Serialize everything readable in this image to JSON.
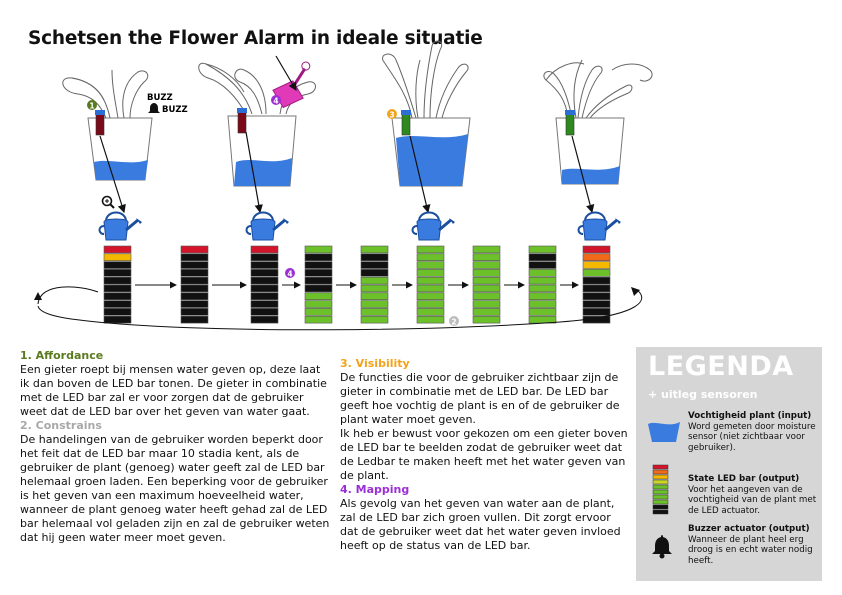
{
  "title": "Schetsen the Flower Alarm in ideale situatie",
  "scene": {
    "buzz_labels": [
      "BUZZ",
      "BUZZ"
    ],
    "step_markers": [
      "1",
      "4",
      "3",
      "4",
      "2"
    ],
    "led_levels": [
      2,
      1,
      1,
      4,
      6,
      9,
      10,
      9,
      7,
      4
    ],
    "water_levels": [
      0.35,
      0.55,
      0.65,
      0.2
    ]
  },
  "colors": {
    "water": "#3a7be0",
    "led_green": "#6cc02a",
    "led_yellow": "#f5b800",
    "led_red": "#d4142b",
    "led_off": "#111111",
    "affordance": "#5a7a1e",
    "constrains": "#a8a8a8",
    "visibility": "#f2a31b",
    "mapping": "#9b2fd4",
    "legend_bg": "#d6d6d6"
  },
  "sections": {
    "affordance": {
      "heading": "1. Affordance",
      "body": "Een gieter roept bij mensen water geven op, deze laat ik dan boven de LED bar tonen. De gieter in combinatie met de LED bar zal er voor zorgen dat de gebruiker weet dat de LED bar over het geven van water gaat."
    },
    "constrains": {
      "heading": "2. Constrains",
      "body": "De handelingen van de gebruiker worden beperkt door het feit dat de LED bar maar 10 stadia kent, als de gebruiker de plant (genoeg) water geeft zal de LED bar helemaal groen laden. Een beperking voor de gebruiker is het geven van een maximum hoeveelheid water, wanneer de plant genoeg water heeft gehad zal de LED bar helemaal vol geladen zijn en zal de gebruiker weten dat hij geen water meer moet geven."
    },
    "visibility": {
      "heading": "3. Visibility",
      "body": "De functies die voor de gebruiker zichtbaar zijn de gieter in combinatie met de LED bar. De LED bar geeft hoe vochtig de plant is en of de gebruiker de plant water moet geven.",
      "body2": "Ik heb er bewust voor gekozen om een gieter boven de LED bar te beelden zodat de gebruiker weet dat de Ledbar te maken heeft met het water geven van de plant."
    },
    "mapping": {
      "heading": "4. Mapping",
      "body": "Als gevolg van het geven van water aan de plant, zal de LED bar zich groen vullen. Dit zorgt ervoor dat de gebruiker weet dat het water geven invloed heeft op de status van de LED bar."
    }
  },
  "legend": {
    "title": "LEGENDA",
    "subtitle": "+ uitleg sensoren",
    "items": [
      {
        "title": "Vochtigheid plant (input)",
        "desc": "Word gemeten door moisture sensor (niet zichtbaar voor gebruiker).",
        "icon": "water-icon"
      },
      {
        "title": "State LED bar (output)",
        "desc": "Voor het aangeven van de vochtigheid van de plant met de LED actuator.",
        "icon": "led-bar-icon"
      },
      {
        "title": "Buzzer actuator (output)",
        "desc": "Wanneer de plant heel erg droog is en echt water nodig heeft.",
        "icon": "bell-icon"
      }
    ]
  }
}
